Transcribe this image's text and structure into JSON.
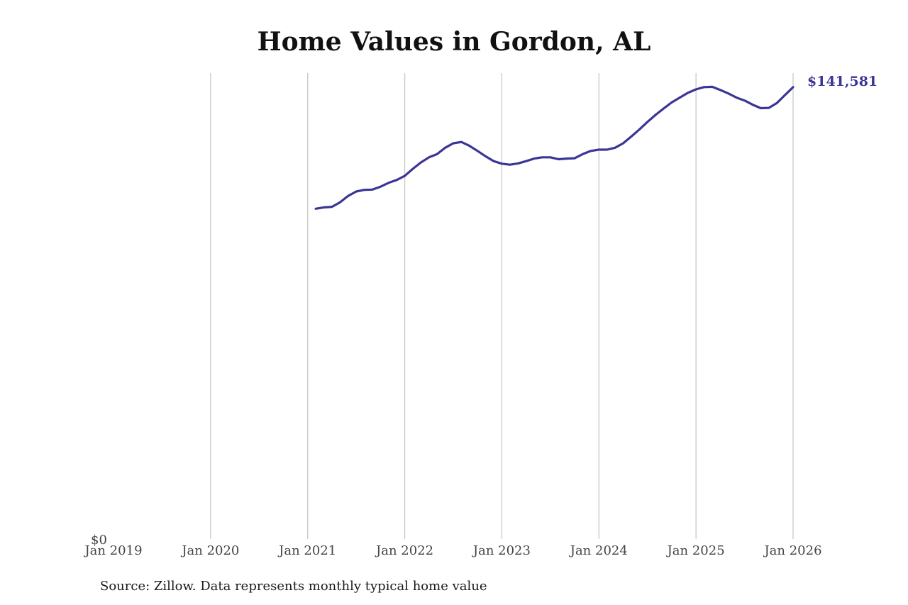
{
  "chart_data": {
    "type": "line",
    "title": "Home Values in Gordon, AL",
    "source_note": "Source: Zillow. Data represents monthly typical home value",
    "x_tick_labels": [
      "Jan 2019",
      "Jan 2020",
      "Jan 2021",
      "Jan 2022",
      "Jan 2023",
      "Jan 2024",
      "Jan 2025",
      "Jan 2026"
    ],
    "xlim": [
      "2019-01",
      "2026-01"
    ],
    "y_tick_labels": [
      "$0"
    ],
    "ylim": [
      0,
      146000
    ],
    "grid": "vertical lines at each January",
    "line_color": "#3b3596",
    "end_label": "$141,581",
    "series": [
      {
        "x": [
          "2021-02",
          "2021-03",
          "2021-04",
          "2021-05",
          "2021-06",
          "2021-07",
          "2021-08",
          "2021-09",
          "2021-10",
          "2021-11",
          "2021-12",
          "2022-01",
          "2022-02",
          "2022-03",
          "2022-04",
          "2022-05",
          "2022-06",
          "2022-07",
          "2022-08",
          "2022-09",
          "2022-10",
          "2022-11",
          "2022-12",
          "2023-01",
          "2023-02",
          "2023-03",
          "2023-04",
          "2023-05",
          "2023-06",
          "2023-07",
          "2023-08",
          "2023-09",
          "2023-10",
          "2023-11",
          "2023-12",
          "2024-01",
          "2024-02",
          "2024-03",
          "2024-04",
          "2024-05",
          "2024-06",
          "2024-07",
          "2024-08",
          "2024-09",
          "2024-10",
          "2024-11",
          "2024-12",
          "2025-01",
          "2025-02",
          "2025-03",
          "2025-04",
          "2025-05",
          "2025-06",
          "2025-07",
          "2025-08",
          "2025-09",
          "2025-10",
          "2025-11",
          "2025-12",
          "2026-01"
        ],
        "values": [
          103500,
          103900,
          104100,
          105500,
          107500,
          108900,
          109400,
          109500,
          110400,
          111600,
          112500,
          113800,
          116000,
          118000,
          119600,
          120600,
          122600,
          124000,
          124400,
          123200,
          121600,
          119900,
          118400,
          117600,
          117300,
          117700,
          118400,
          119200,
          119600,
          119600,
          119000,
          119200,
          119300,
          120600,
          121600,
          122000,
          122000,
          122600,
          124000,
          126100,
          128300,
          130700,
          132900,
          134900,
          136800,
          138300,
          139800,
          140900,
          141600,
          141700,
          140700,
          139600,
          138300,
          137400,
          136100,
          135000,
          135100,
          136600,
          139100,
          141581
        ]
      }
    ]
  }
}
